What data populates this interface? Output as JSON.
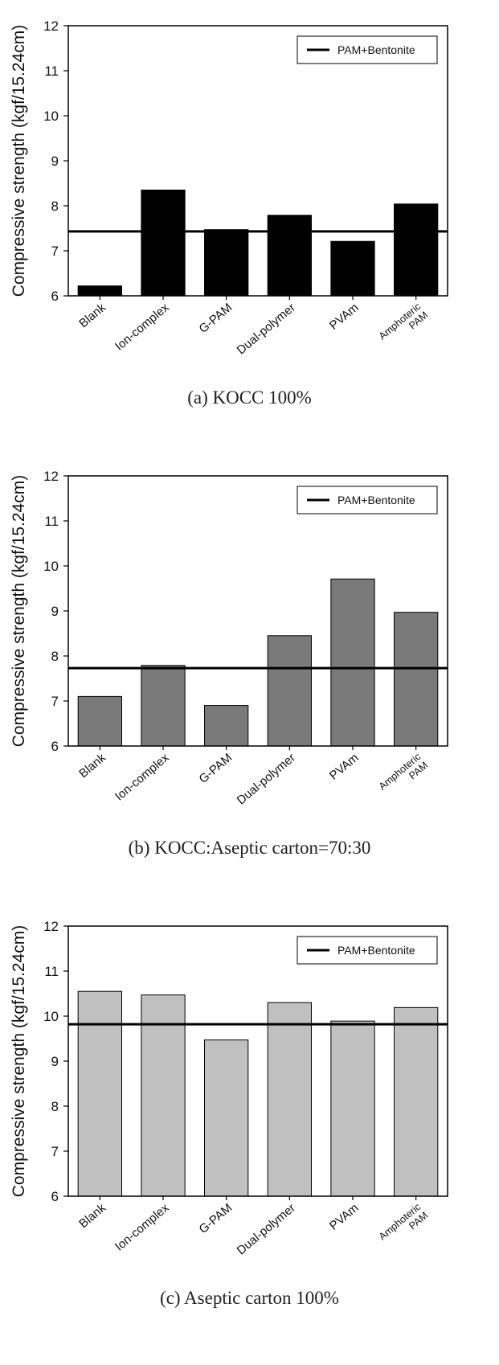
{
  "charts": [
    {
      "caption": "(a) KOCC 100%",
      "ylabel": "Compressive strength (kgf/15.24cm)",
      "legend_label": "PAM+Bentonite",
      "bar_color": "#000000"
    },
    {
      "caption": "(b) KOCC:Aseptic carton=70:30",
      "ylabel": "Compressive strength (kgf/15.24cm)",
      "legend_label": "PAM+Bentonite",
      "bar_color": "#7a7a7a"
    },
    {
      "caption": "(c) Aseptic carton 100%",
      "ylabel": "Compressive strength (kgf/15.24cm)",
      "legend_label": "PAM+Bentonite",
      "bar_color": "#c0c0c0"
    }
  ],
  "chart_data": [
    {
      "type": "bar",
      "categories": [
        "Blank",
        "Ion-complex",
        "G-PAM",
        "Dual-polymer",
        "PVAm",
        [
          "Amphoteric",
          "PAM"
        ]
      ],
      "values": [
        6.22,
        8.35,
        7.47,
        7.79,
        7.21,
        8.04
      ],
      "reference_line": {
        "name": "PAM+Bentonite",
        "value": 7.43
      },
      "ylabel": "Compressive strength (kgf/15.24cm)",
      "ylim": [
        6,
        12
      ],
      "yticks": [
        6,
        7,
        8,
        9,
        10,
        11,
        12
      ],
      "legend_position": "top-right",
      "grid": false
    },
    {
      "type": "bar",
      "categories": [
        "Blank",
        "Ion-complex",
        "G-PAM",
        "Dual-polymer",
        "PVAm",
        [
          "Amphoteric",
          "PAM"
        ]
      ],
      "values": [
        7.1,
        7.79,
        6.9,
        8.45,
        9.71,
        8.97
      ],
      "reference_line": {
        "name": "PAM+Bentonite",
        "value": 7.73
      },
      "ylabel": "Compressive strength (kgf/15.24cm)",
      "ylim": [
        6,
        12
      ],
      "yticks": [
        6,
        7,
        8,
        9,
        10,
        11,
        12
      ],
      "legend_position": "top-right",
      "grid": false
    },
    {
      "type": "bar",
      "categories": [
        "Blank",
        "Ion-complex",
        "G-PAM",
        "Dual-polymer",
        "PVAm",
        [
          "Amphoteric",
          "PAM"
        ]
      ],
      "values": [
        10.55,
        10.47,
        9.47,
        10.3,
        9.89,
        10.19
      ],
      "reference_line": {
        "name": "PAM+Bentonite",
        "value": 9.82
      },
      "ylabel": "Compressive strength (kgf/15.24cm)",
      "ylim": [
        6,
        12
      ],
      "yticks": [
        6,
        7,
        8,
        9,
        10,
        11,
        12
      ],
      "legend_position": "top-right",
      "grid": false
    }
  ]
}
